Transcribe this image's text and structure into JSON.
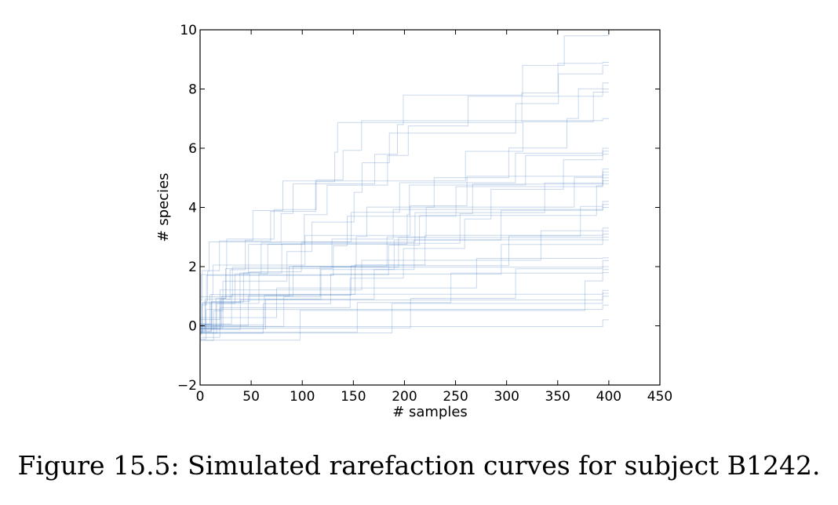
{
  "chart_data": {
    "type": "line",
    "title": "",
    "xlabel": "# samples",
    "ylabel": "# species",
    "xlim": [
      0,
      450
    ],
    "ylim": [
      -2,
      10
    ],
    "xticks": [
      0,
      50,
      100,
      150,
      200,
      250,
      300,
      350,
      400,
      450
    ],
    "yticks": [
      -2,
      0,
      2,
      4,
      6,
      8,
      10
    ],
    "xtick_labels": [
      "0",
      "50",
      "100",
      "150",
      "200",
      "250",
      "300",
      "350",
      "400",
      "450"
    ],
    "ytick_labels": [
      "−2",
      "0",
      "2",
      "4",
      "6",
      "8",
      "10"
    ],
    "grid": false,
    "legend": "none",
    "line_style": "step",
    "line_color": "#4a7fc1",
    "x_max": 400,
    "final_values_approx": [
      9.8,
      8.9,
      8.8,
      8.2,
      8.0,
      7.9,
      7.0,
      6.0,
      5.9,
      5.8,
      5.3,
      5.2,
      5.1,
      5.0,
      4.9,
      4.8,
      4.2,
      4.1,
      4.0,
      3.3,
      3.2,
      3.1,
      3.0,
      2.9,
      2.3,
      2.2,
      2.0,
      1.9,
      1.8,
      1.2,
      1.1,
      1.0,
      0.7,
      0.2
    ]
  },
  "caption": "Figure 15.5: Simulated rarefaction curves for subject B1242."
}
